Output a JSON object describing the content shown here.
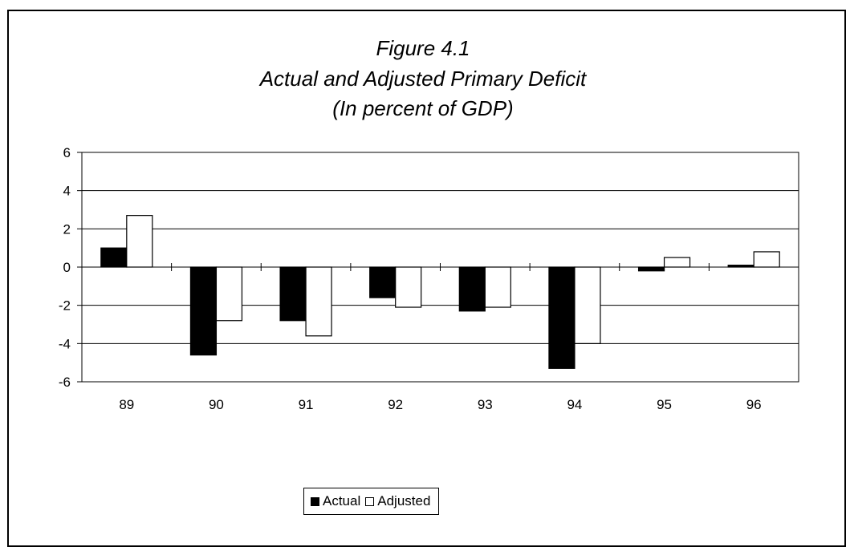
{
  "chart_data": {
    "type": "bar",
    "title": "Figure 4.1",
    "subtitle": "Actual and Adjusted Primary  Deficit",
    "subtitle2": "(In percent of GDP)",
    "categories": [
      "89",
      "90",
      "91",
      "92",
      "93",
      "94",
      "95",
      "96"
    ],
    "series": [
      {
        "name": "Actual",
        "color": "#000000",
        "values": [
          1.0,
          -4.6,
          -2.8,
          -1.6,
          -2.3,
          -5.3,
          -0.2,
          0.1
        ]
      },
      {
        "name": "Adjusted",
        "color": "#ffffff",
        "values": [
          2.7,
          -2.8,
          -3.6,
          -2.1,
          -2.1,
          -4.0,
          0.5,
          0.8
        ]
      }
    ],
    "ylim": [
      -6,
      6
    ],
    "yticks": [
      "6",
      "4",
      "2",
      "0",
      "-2",
      "-4",
      "-6"
    ],
    "grid": true,
    "legend_position": "bottom"
  }
}
